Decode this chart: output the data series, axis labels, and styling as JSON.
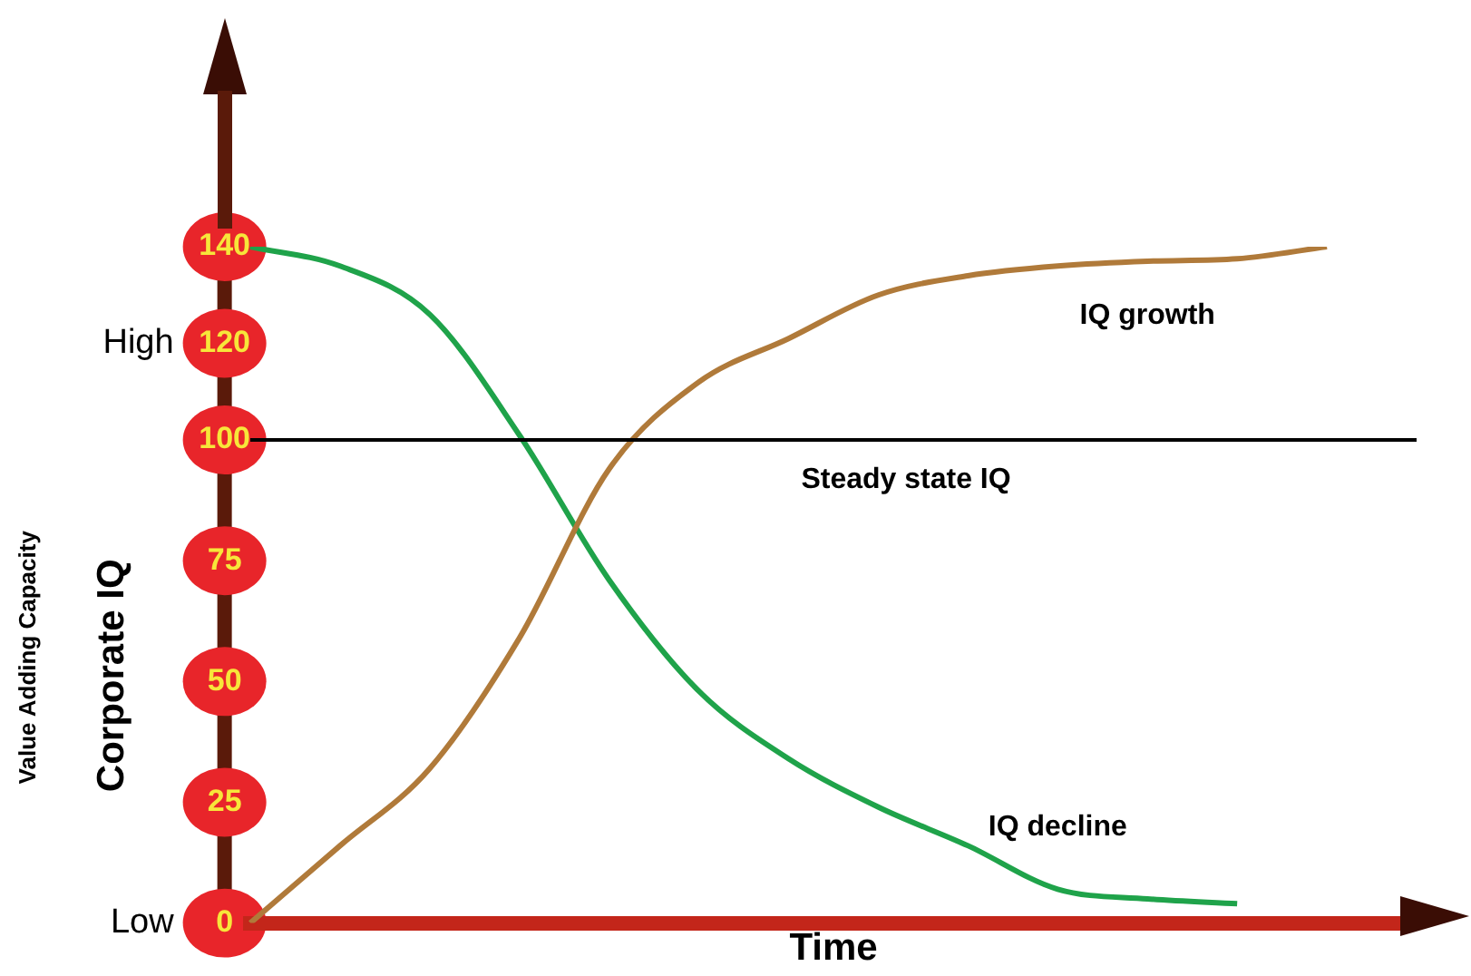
{
  "chart_data": {
    "type": "line",
    "ylabel": "Corporate IQ",
    "xlabel": "Time",
    "categories": [
      null,
      null,
      null,
      null,
      null,
      null,
      null,
      null,
      null,
      null,
      null,
      null,
      null,
      null
    ],
    "series": [
      {
        "name": "IQ growth",
        "color": "#b07a3a",
        "values": [
          0,
          16,
          32,
          59,
          94,
          112,
          121,
          130,
          134,
          136,
          137,
          137.5,
          140,
          null
        ]
      },
      {
        "name": "IQ decline",
        "color": "#1fa34a",
        "values": [
          140,
          136,
          126,
          101,
          71,
          48,
          34,
          24,
          16,
          7,
          5,
          4,
          null,
          null
        ]
      }
    ],
    "ylim": [
      0,
      140
    ],
    "yticks": [
      0,
      25,
      50,
      75,
      100,
      120,
      140
    ],
    "tick_labels": "y",
    "grid": false,
    "legend": false,
    "ref_lines": [
      {
        "axis": "y",
        "value": 100,
        "label": "Steady state IQ",
        "color": "#000000"
      }
    ],
    "annotations": [
      "High",
      "Low",
      "Value Adding Capacity"
    ]
  }
}
